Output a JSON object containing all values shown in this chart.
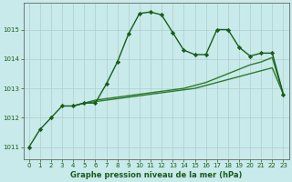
{
  "title": "Graphe pression niveau de la mer (hPa)",
  "background_color": "#c8eaea",
  "grid_color": "#b0cccc",
  "line_color_main": "#1a5c1a",
  "line_color_secondary": "#2d7a2d",
  "xlim": [
    -0.5,
    23.5
  ],
  "ylim": [
    1010.6,
    1015.9
  ],
  "yticks": [
    1011,
    1012,
    1013,
    1014,
    1015
  ],
  "xticks": [
    0,
    1,
    2,
    3,
    4,
    5,
    6,
    7,
    8,
    9,
    10,
    11,
    12,
    13,
    14,
    15,
    16,
    17,
    18,
    19,
    20,
    21,
    22,
    23
  ],
  "series_main": [
    1011.0,
    1011.6,
    1012.0,
    1012.4,
    1012.4,
    1012.5,
    1012.5,
    1013.15,
    1013.9,
    1014.85,
    1015.55,
    1015.6,
    1015.5,
    1014.9,
    1014.3,
    1014.15,
    1014.15,
    1015.0,
    1015.0,
    1014.4,
    1014.1,
    1014.2,
    1014.2,
    1012.8
  ],
  "series2_x": [
    4,
    5,
    6,
    7,
    8,
    9,
    10,
    11,
    12,
    13,
    14,
    15,
    16,
    17,
    18,
    19,
    20,
    21,
    22,
    23
  ],
  "series2_y": [
    1012.4,
    1012.5,
    1012.55,
    1012.6,
    1012.65,
    1012.7,
    1012.75,
    1012.8,
    1012.85,
    1012.9,
    1012.95,
    1013.0,
    1013.1,
    1013.2,
    1013.3,
    1013.4,
    1013.5,
    1013.6,
    1013.7,
    1012.8
  ],
  "series3_x": [
    4,
    5,
    6,
    7,
    8,
    9,
    10,
    11,
    12,
    13,
    14,
    15,
    16,
    17,
    18,
    19,
    20,
    21,
    22,
    23
  ],
  "series3_y": [
    1012.4,
    1012.5,
    1012.6,
    1012.65,
    1012.7,
    1012.75,
    1012.8,
    1012.85,
    1012.9,
    1012.95,
    1013.0,
    1013.1,
    1013.2,
    1013.35,
    1013.5,
    1013.65,
    1013.8,
    1013.9,
    1014.05,
    1012.8
  ],
  "marker": "D",
  "markersize": 2.2,
  "linewidth_main": 1.0,
  "linewidth_secondary": 1.0,
  "tick_fontsize": 5,
  "title_fontsize": 6
}
